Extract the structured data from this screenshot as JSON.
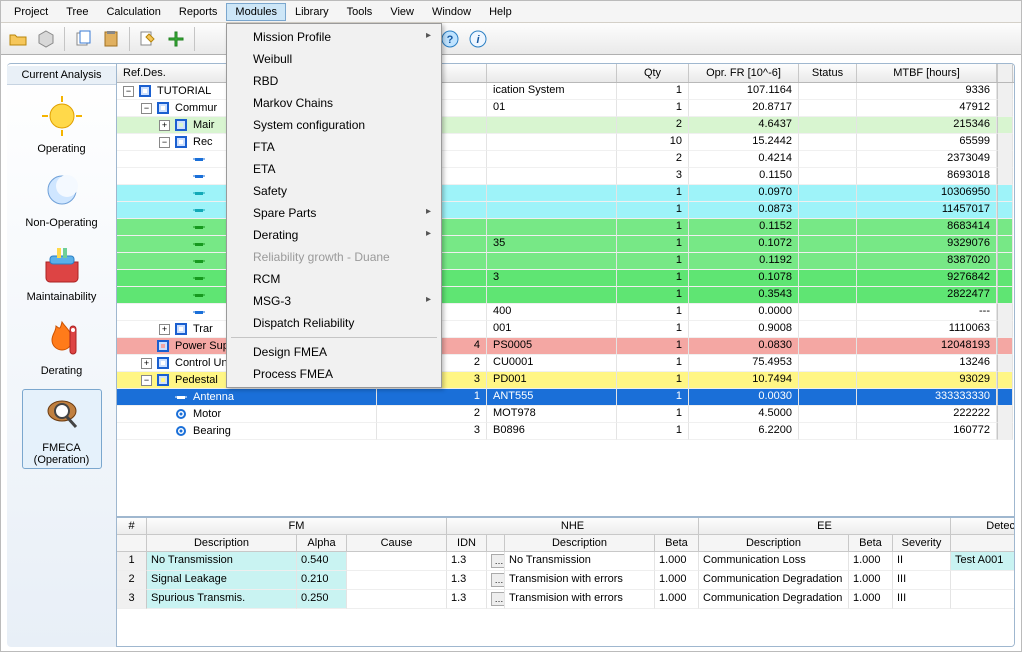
{
  "menubar": [
    "Project",
    "Tree",
    "Calculation",
    "Reports",
    "Modules",
    "Library",
    "Tools",
    "View",
    "Window",
    "Help"
  ],
  "menubar_active_index": 4,
  "dropdown": {
    "items": [
      {
        "label": "Mission Profile",
        "sub": true
      },
      {
        "label": "Weibull"
      },
      {
        "label": "RBD"
      },
      {
        "label": "Markov Chains"
      },
      {
        "label": "System configuration"
      },
      {
        "label": "FTA"
      },
      {
        "label": "ETA"
      },
      {
        "label": "Safety"
      },
      {
        "label": "Spare Parts",
        "sub": true
      },
      {
        "label": "Derating",
        "sub": true
      },
      {
        "label": "Reliability growth - Duane",
        "disabled": true
      },
      {
        "label": "RCM"
      },
      {
        "label": "MSG-3",
        "sub": true
      },
      {
        "label": "Dispatch Reliability"
      },
      {
        "sep": true
      },
      {
        "label": "Design FMEA"
      },
      {
        "label": "Process FMEA"
      }
    ]
  },
  "sidebar": {
    "title": "Current Analysis",
    "items": [
      {
        "id": "operating",
        "label": "Operating",
        "icon": "sun",
        "selected": false
      },
      {
        "id": "nonoperating",
        "label": "Non-Operating",
        "icon": "moon",
        "selected": false
      },
      {
        "id": "maintainability",
        "label": "Maintainability",
        "icon": "toolbox",
        "selected": false
      },
      {
        "id": "derating",
        "label": "Derating",
        "icon": "flame",
        "selected": false
      },
      {
        "id": "fmeca",
        "label": "FMECA (Operation)",
        "icon": "magnifier",
        "selected": true
      }
    ]
  },
  "grid": {
    "columns": [
      "Ref.Des.",
      "",
      "",
      "Qty",
      "Opr. FR [10^-6]",
      "Status",
      "MTBF [hours]"
    ],
    "column_align": [
      "left",
      "right",
      "left",
      "right",
      "right",
      "center",
      "right"
    ],
    "rows": [
      {
        "indent": 0,
        "exp": "-",
        "icon": "block",
        "label": "TUTORIAL",
        "c2": "",
        "c3": "ication System",
        "qty": "1",
        "fr": "107.1164",
        "status": "",
        "mtbf": "9336",
        "bg": null
      },
      {
        "indent": 1,
        "exp": "-",
        "icon": "block",
        "label": "Commur",
        "c2": "",
        "c3": "01",
        "qty": "1",
        "fr": "20.8717",
        "status": "",
        "mtbf": "47912",
        "bg": null
      },
      {
        "indent": 2,
        "exp": "+",
        "icon": "block",
        "label": "Mair",
        "c2": "",
        "c3": "",
        "qty": "2",
        "fr": "4.6437",
        "status": "",
        "mtbf": "215346",
        "bg": "lightgreen"
      },
      {
        "indent": 2,
        "exp": "-",
        "icon": "block",
        "label": "Rec",
        "c2": "",
        "c3": "",
        "qty": "10",
        "fr": "15.2442",
        "status": "",
        "mtbf": "65599",
        "bg": null
      },
      {
        "indent": 3,
        "exp": "",
        "icon": "comp",
        "label": "",
        "c2": "",
        "c3": "",
        "qty": "2",
        "fr": "0.4214",
        "status": "",
        "mtbf": "2373049",
        "bg": null,
        "compColor": "#1a6fd8"
      },
      {
        "indent": 3,
        "exp": "",
        "icon": "comp",
        "label": "",
        "c2": "",
        "c3": "",
        "qty": "3",
        "fr": "0.1150",
        "status": "",
        "mtbf": "8693018",
        "bg": null,
        "compColor": "#1a6fd8"
      },
      {
        "indent": 3,
        "exp": "",
        "icon": "comp",
        "label": "",
        "c2": "",
        "c3": "",
        "qty": "1",
        "fr": "0.0970",
        "status": "",
        "mtbf": "10306950",
        "bg": "cyan",
        "compColor": "#12a9b7"
      },
      {
        "indent": 3,
        "exp": "",
        "icon": "comp",
        "label": "",
        "c2": "",
        "c3": "",
        "qty": "1",
        "fr": "0.0873",
        "status": "",
        "mtbf": "11457017",
        "bg": "cyan",
        "compColor": "#12a9b7"
      },
      {
        "indent": 3,
        "exp": "",
        "icon": "comp",
        "label": "",
        "c2": "",
        "c3": "",
        "qty": "1",
        "fr": "0.1152",
        "status": "",
        "mtbf": "8683414",
        "bg": "green",
        "compColor": "#17991f"
      },
      {
        "indent": 3,
        "exp": "",
        "icon": "comp",
        "label": "",
        "c2": "",
        "c3": "35",
        "qty": "1",
        "fr": "0.1072",
        "status": "",
        "mtbf": "9329076",
        "bg": "green",
        "compColor": "#17991f"
      },
      {
        "indent": 3,
        "exp": "",
        "icon": "comp",
        "label": "",
        "c2": "",
        "c3": "",
        "qty": "1",
        "fr": "0.1192",
        "status": "",
        "mtbf": "8387020",
        "bg": "green",
        "compColor": "#17991f"
      },
      {
        "indent": 3,
        "exp": "",
        "icon": "comp",
        "label": "",
        "c2": "",
        "c3": "3",
        "qty": "1",
        "fr": "0.1078",
        "status": "",
        "mtbf": "9276842",
        "bg": "green2",
        "compColor": "#17991f"
      },
      {
        "indent": 3,
        "exp": "",
        "icon": "comp",
        "label": "",
        "c2": "",
        "c3": "",
        "qty": "1",
        "fr": "0.3543",
        "status": "",
        "mtbf": "2822477",
        "bg": "green2",
        "compColor": "#17991f"
      },
      {
        "indent": 3,
        "exp": "",
        "icon": "comp",
        "label": "",
        "c2": "",
        "c3": "400",
        "qty": "1",
        "fr": "0.0000",
        "status": "",
        "mtbf": "---",
        "bg": null,
        "compColor": "#1a6fd8"
      },
      {
        "indent": 2,
        "exp": "+",
        "icon": "block",
        "label": "Trar",
        "c2": "",
        "c3": "001",
        "qty": "1",
        "fr": "0.9008",
        "status": "",
        "mtbf": "1110063",
        "bg": null
      },
      {
        "indent": 1,
        "exp": "",
        "icon": "block",
        "label": "Power Supply",
        "c2": "4",
        "c3": "PS0005",
        "qty": "1",
        "fr": "0.0830",
        "status": "",
        "mtbf": "12048193",
        "bg": "red"
      },
      {
        "indent": 1,
        "exp": "+",
        "icon": "block",
        "label": "Control Unit",
        "c2": "2",
        "c3": "CU0001",
        "qty": "1",
        "fr": "75.4953",
        "status": "",
        "mtbf": "13246",
        "bg": null
      },
      {
        "indent": 1,
        "exp": "-",
        "icon": "block",
        "label": "Pedestal",
        "c2": "3",
        "c3": "PD001",
        "qty": "1",
        "fr": "10.7494",
        "status": "",
        "mtbf": "93029",
        "bg": "yellow"
      },
      {
        "indent": 2,
        "exp": "",
        "icon": "comp",
        "label": "Antenna",
        "c2": "1",
        "c3": "ANT555",
        "qty": "1",
        "fr": "0.0030",
        "status": "",
        "mtbf": "333333330",
        "bg": "blue",
        "compColor": "#ffffff"
      },
      {
        "indent": 2,
        "exp": "",
        "icon": "comp",
        "label": "Motor",
        "c2": "2",
        "c3": "MOT978",
        "qty": "1",
        "fr": "4.5000",
        "status": "",
        "mtbf": "222222",
        "bg": null,
        "compColor": "#1a6fd8"
      },
      {
        "indent": 2,
        "exp": "",
        "icon": "comp",
        "label": "Bearing",
        "c2": "3",
        "c3": "B0896",
        "qty": "1",
        "fr": "6.2200",
        "status": "",
        "mtbf": "160772",
        "bg": null,
        "compColor": "#1a6fd8"
      }
    ]
  },
  "bottom": {
    "groups": [
      "#",
      "FM",
      "NHE",
      "EE",
      "Detection"
    ],
    "columns": [
      "#",
      "Description",
      "Alpha",
      "Cause",
      "IDN",
      "",
      "Description",
      "Beta",
      "Description",
      "Beta",
      "Severity",
      "Detection",
      ""
    ],
    "rows": [
      {
        "n": "1",
        "desc": "No Transmission",
        "alpha": "0.540",
        "cause": "",
        "idn": "1.3",
        "nhe": "No Transmission",
        "beta1": "1.000",
        "ee": "Communication Loss",
        "beta2": "1.000",
        "sev": "II",
        "det": "Test A001"
      },
      {
        "n": "2",
        "desc": "Signal Leakage",
        "alpha": "0.210",
        "cause": "",
        "idn": "1.3",
        "nhe": "Transmision with errors",
        "beta1": "1.000",
        "ee": "Communication Degradation",
        "beta2": "1.000",
        "sev": "III",
        "det": ""
      },
      {
        "n": "3",
        "desc": "Spurious Transmis.",
        "alpha": "0.250",
        "cause": "",
        "idn": "1.3",
        "nhe": "Transmision with errors",
        "beta1": "1.000",
        "ee": "Communication Degradation",
        "beta2": "1.000",
        "sev": "III",
        "det": ""
      }
    ]
  },
  "colors": {
    "lightgreen": "#d8f5d0",
    "cyan": "#9ef3f9",
    "green": "#77e886",
    "green2": "#5fe573",
    "red": "#f4a7a3",
    "yellow": "#fff685",
    "blue": "#1a6fd8"
  }
}
